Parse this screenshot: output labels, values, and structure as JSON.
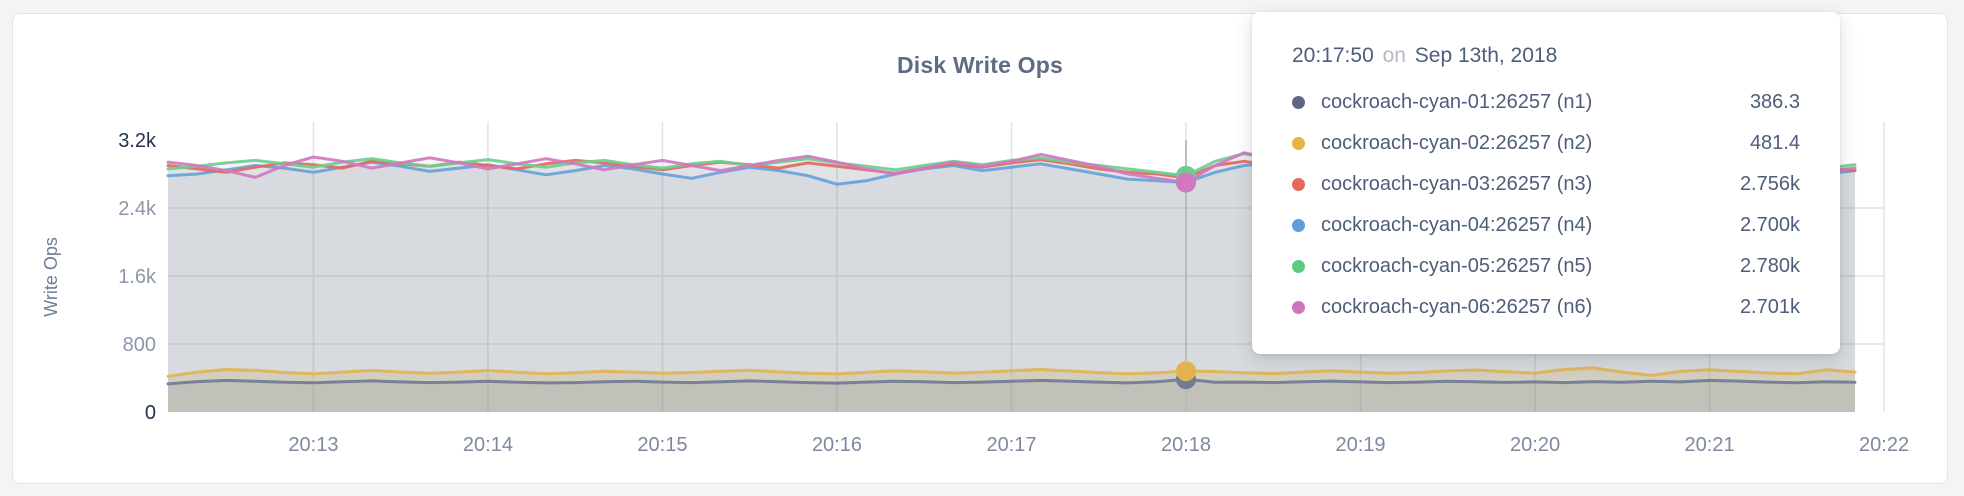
{
  "page": {
    "background": "#f4f4f6"
  },
  "card": {
    "background": "#ffffff",
    "border_color": "#e2e3e6"
  },
  "chart_data": {
    "type": "line",
    "title": "Disk Write Ops",
    "ylabel": "Write Ops",
    "xlabel": "",
    "ylim": [
      0,
      3200
    ],
    "grid": true,
    "legend_position": "hover-tooltip-overlay",
    "x_ticks": [
      "20:13",
      "20:14",
      "20:15",
      "20:16",
      "20:17",
      "20:18",
      "20:19",
      "20:20",
      "20:21",
      "20:22"
    ],
    "y_ticks": [
      {
        "label": "0",
        "value": 0,
        "strong": true,
        "grid": false
      },
      {
        "label": "800",
        "value": 800,
        "strong": false,
        "grid": true
      },
      {
        "label": "1.6k",
        "value": 1600,
        "strong": false,
        "grid": true
      },
      {
        "label": "2.4k",
        "value": 2400,
        "strong": false,
        "grid": true
      },
      {
        "label": "3.2k",
        "value": 3200,
        "strong": true,
        "grid": false
      }
    ],
    "x_start_time": "20:12:10",
    "x_step_seconds": 10,
    "series": [
      {
        "name": "cockroach-cyan-01:26257 (n1)",
        "color": "#717b92",
        "fill": "rgba(106,116,140,0.16)",
        "values": [
          330,
          358,
          372,
          362,
          350,
          344,
          356,
          366,
          354,
          346,
          352,
          362,
          350,
          342,
          346,
          356,
          362,
          352,
          346,
          356,
          366,
          356,
          346,
          340,
          352,
          362,
          356,
          346,
          352,
          362,
          372,
          362,
          352,
          342,
          356,
          386.3,
          350,
          352,
          346,
          356,
          364,
          354,
          346,
          352,
          362,
          356,
          348,
          354,
          346,
          358,
          350,
          362,
          354,
          372,
          364,
          352,
          344,
          356,
          350
        ]
      },
      {
        "name": "cockroach-cyan-02:26257 (n2)",
        "color": "#e1b44f",
        "fill": "rgba(196,168,91,0.22)",
        "values": [
          420,
          470,
          500,
          490,
          465,
          450,
          470,
          490,
          470,
          455,
          470,
          488,
          468,
          450,
          462,
          480,
          470,
          455,
          465,
          480,
          492,
          472,
          456,
          448,
          466,
          486,
          472,
          458,
          468,
          486,
          500,
          482,
          464,
          450,
          462,
          481.4,
          476,
          462,
          452,
          470,
          486,
          470,
          456,
          466,
          484,
          494,
          474,
          458,
          500,
          520,
          470,
          430,
          478,
          496,
          478,
          460,
          450,
          496,
          470
        ]
      },
      {
        "name": "cockroach-cyan-03:26257 (n3)",
        "color": "#e16a60",
        "fill": "rgba(130,136,153,0.085)",
        "values": [
          2900,
          2860,
          2820,
          2880,
          2930,
          2910,
          2870,
          2950,
          2920,
          2890,
          2940,
          2900,
          2860,
          2920,
          2960,
          2930,
          2890,
          2850,
          2900,
          2940,
          2910,
          2870,
          2930,
          2890,
          2850,
          2810,
          2870,
          2920,
          2880,
          2930,
          2970,
          2920,
          2860,
          2820,
          2800,
          2756,
          2900,
          2950,
          2900,
          2860,
          2920,
          2880,
          2840,
          2900,
          2940,
          2890,
          2850,
          2910,
          2870,
          2930,
          2890,
          2950,
          2900,
          2860,
          2820,
          2880,
          2920,
          2870,
          2840
        ]
      },
      {
        "name": "cockroach-cyan-04:26257 (n4)",
        "color": "#69a2d8",
        "fill": "rgba(130,136,153,0.085)",
        "values": [
          2780,
          2800,
          2850,
          2900,
          2870,
          2820,
          2880,
          2940,
          2890,
          2830,
          2870,
          2910,
          2850,
          2790,
          2840,
          2900,
          2860,
          2800,
          2750,
          2820,
          2880,
          2840,
          2780,
          2680,
          2720,
          2800,
          2860,
          2900,
          2840,
          2880,
          2920,
          2860,
          2800,
          2740,
          2720,
          2700,
          2820,
          2900,
          2930,
          2870,
          2810,
          2860,
          2900,
          2850,
          2790,
          2840,
          2890,
          2930,
          2880,
          2820,
          2860,
          2900,
          2840,
          2780,
          2830,
          2890,
          2850,
          2800,
          2840
        ]
      },
      {
        "name": "cockroach-cyan-05:26257 (n5)",
        "color": "#6ecd8e",
        "fill": "rgba(130,136,153,0.085)",
        "values": [
          2860,
          2890,
          2930,
          2960,
          2920,
          2880,
          2940,
          2980,
          2930,
          2890,
          2930,
          2970,
          2920,
          2880,
          2930,
          2960,
          2910,
          2870,
          2920,
          2950,
          2900,
          2940,
          2980,
          2930,
          2890,
          2850,
          2900,
          2950,
          2910,
          2960,
          2990,
          2940,
          2900,
          2860,
          2820,
          2780,
          2950,
          3040,
          2970,
          2910,
          2950,
          2900,
          2860,
          2920,
          2970,
          2920,
          2880,
          2930,
          2890,
          2940,
          2900,
          2960,
          2910,
          2870,
          2920,
          2960,
          2900,
          2870,
          2910
        ]
      },
      {
        "name": "cockroach-cyan-06:26257 (n6)",
        "color": "#d079c1",
        "fill": "rgba(130,136,153,0.085)",
        "values": [
          2940,
          2900,
          2840,
          2760,
          2900,
          3000,
          2950,
          2870,
          2930,
          2990,
          2930,
          2860,
          2920,
          2980,
          2920,
          2850,
          2910,
          2960,
          2900,
          2840,
          2900,
          2960,
          3010,
          2940,
          2860,
          2800,
          2870,
          2940,
          2890,
          2950,
          3030,
          2960,
          2890,
          2800,
          2750,
          2701,
          2900,
          3050,
          2980,
          2900,
          2840,
          2900,
          2950,
          2890,
          2830,
          2890,
          2940,
          2990,
          2920,
          2860,
          2900,
          2950,
          2890,
          2830,
          2880,
          2940,
          2880,
          2830,
          2870
        ]
      }
    ]
  },
  "tooltip": {
    "time": "20:17:50",
    "conjunction": "on",
    "date": "Sep 13th, 2018",
    "hover_index": 35,
    "rows": [
      {
        "label": "cockroach-cyan-01:26257 (n1)",
        "value": "386.3",
        "color": "#5d6983"
      },
      {
        "label": "cockroach-cyan-02:26257 (n2)",
        "value": "481.4",
        "color": "#e5b63e"
      },
      {
        "label": "cockroach-cyan-03:26257 (n3)",
        "value": "2.756k",
        "color": "#e4695e"
      },
      {
        "label": "cockroach-cyan-04:26257 (n4)",
        "value": "2.700k",
        "color": "#5d9fd9"
      },
      {
        "label": "cockroach-cyan-05:26257 (n5)",
        "value": "2.780k",
        "color": "#5fcb82"
      },
      {
        "label": "cockroach-cyan-06:26257 (n6)",
        "value": "2.701k",
        "color": "#d173bd"
      }
    ]
  },
  "colors": {
    "grid": "#e2e3e7",
    "hover_line": "#b9bac0",
    "tick_strong": "#24344f",
    "tick_mid": "#8d97aa",
    "x_tick": "#7e89a0",
    "axis_label": "#6e7d97"
  }
}
